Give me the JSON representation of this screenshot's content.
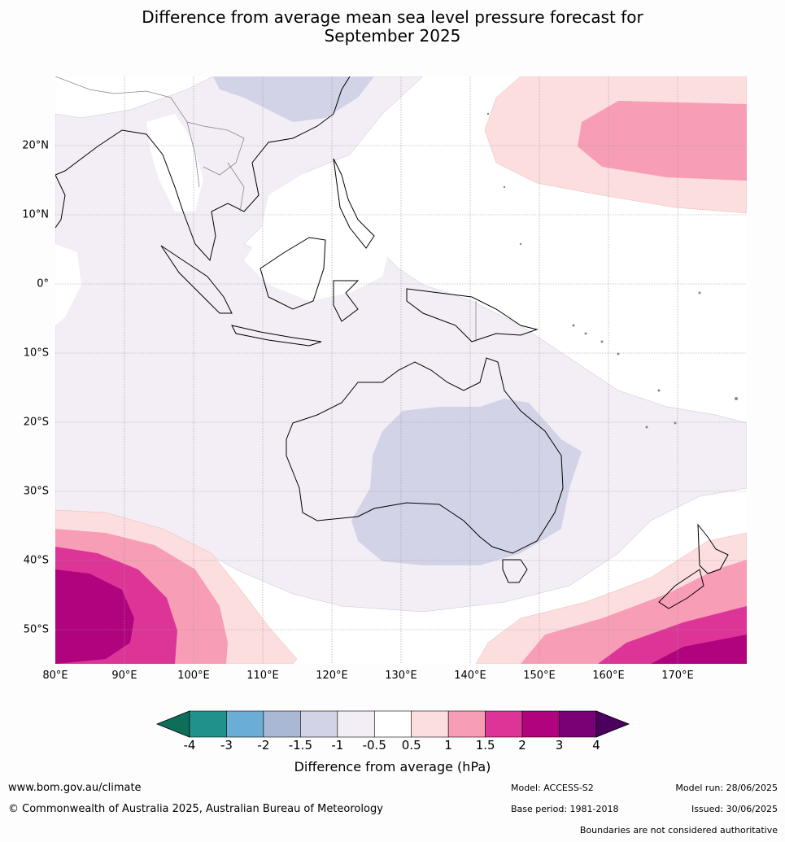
{
  "title_line1": "Difference from average mean sea level pressure forecast for",
  "title_line2": "September 2025",
  "lat_labels": [
    "20°N",
    "10°N",
    "0°",
    "10°S",
    "20°S",
    "30°S",
    "40°S",
    "50°S"
  ],
  "lon_labels": [
    "80°E",
    "90°E",
    "100°E",
    "110°E",
    "120°E",
    "130°E",
    "140°E",
    "150°E",
    "160°E",
    "170°E"
  ],
  "colorbar": {
    "ticks": [
      "-4",
      "-3",
      "-2",
      "-1.5",
      "-1",
      "-0.5",
      "0.5",
      "1",
      "1.5",
      "2",
      "3",
      "4"
    ],
    "colors": [
      "#0d6e5a",
      "#21918c",
      "#6aaed6",
      "#a9b8d4",
      "#d2d3e6",
      "#f3eef6",
      "#ffffff",
      "#fddede",
      "#f89db6",
      "#dc3597",
      "#b0037d",
      "#7a0076",
      "#4b0060"
    ],
    "title": "Difference from average (hPa)"
  },
  "footer": {
    "website": "www.bom.gov.au/climate",
    "copyright": "© Commonwealth of Australia 2025, Australian Bureau of Meteorology",
    "model": "Model: ACCESS-S2",
    "base_period": "Base period: 1981-2018",
    "model_run": "Model run: 28/06/2025",
    "issued": "Issued: 30/06/2025",
    "disclaimer": "Boundaries are not considered authoritative"
  }
}
